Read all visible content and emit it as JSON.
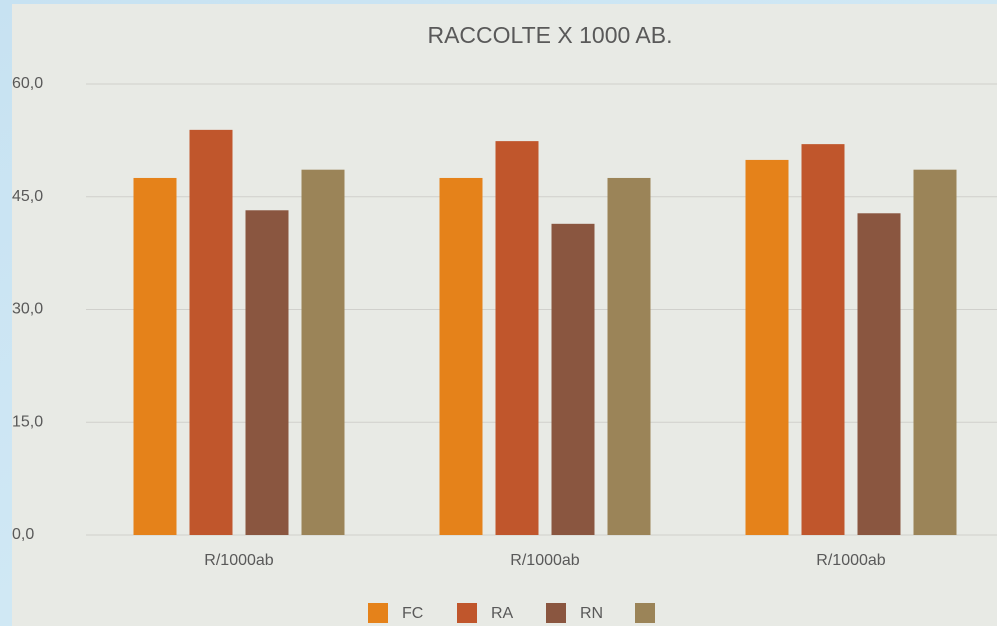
{
  "chart_data": {
    "type": "bar",
    "title": "RACCOLTE X 1000 AB.",
    "categories": [
      "R/1000ab",
      "R/1000ab",
      "R/1000ab"
    ],
    "series": [
      {
        "name": "FC",
        "color": "#e5821a",
        "values": [
          47.5,
          47.5,
          49.9
        ]
      },
      {
        "name": "RA",
        "color": "#c0562c",
        "values": [
          53.9,
          52.4,
          52.0
        ]
      },
      {
        "name": "RN",
        "color": "#8a5640",
        "values": [
          43.2,
          41.4,
          42.8
        ]
      },
      {
        "name": null,
        "color": "#9b8458",
        "values": [
          48.6,
          47.5,
          48.6
        ]
      }
    ],
    "ylim": [
      0,
      60
    ],
    "yticks": [
      {
        "value": 0,
        "label": "0,0"
      },
      {
        "value": 15,
        "label": "15,0"
      },
      {
        "value": 30,
        "label": "30,0"
      },
      {
        "value": 45,
        "label": "45,0"
      },
      {
        "value": 60,
        "label": "60,0"
      }
    ],
    "grid": true,
    "legend": "bottom"
  }
}
